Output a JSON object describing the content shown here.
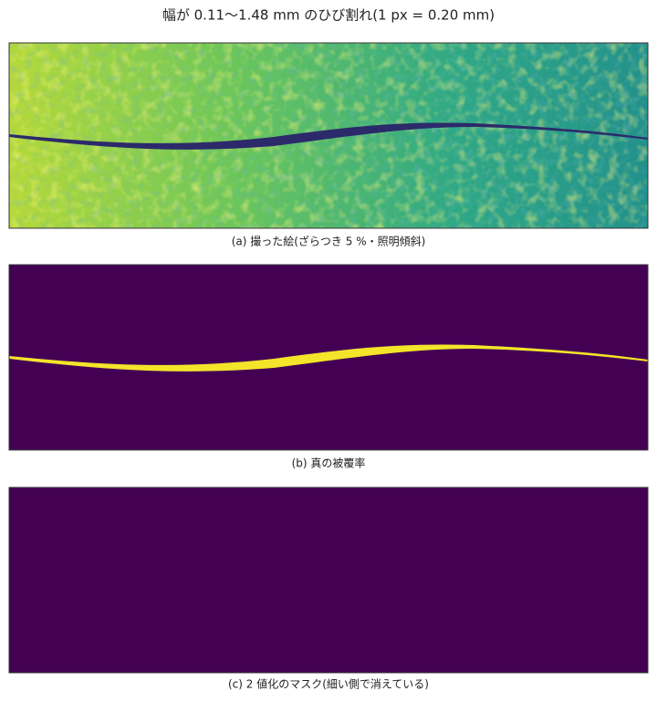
{
  "title": "幅が 0.11〜1.48 mm のひび割れ(1 px = 0.20 mm)",
  "panels": [
    {
      "caption": "(a) 撮った絵(ざらつき 5 %・照明傾斜)"
    },
    {
      "caption": "(b) 真の被覆率"
    },
    {
      "caption": "(c) 2 値化のマスク(細い側で消えている)"
    }
  ]
}
